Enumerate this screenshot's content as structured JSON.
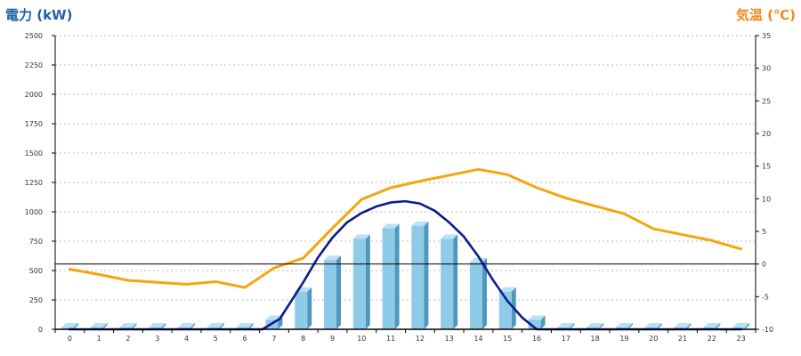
{
  "chart_data": {
    "type": "bar",
    "title": "",
    "xlabel": "",
    "ylabel": "電力 (kW)",
    "y2label": "気温 (℃)",
    "categories": [
      "0",
      "1",
      "2",
      "3",
      "4",
      "5",
      "6",
      "7",
      "8",
      "9",
      "10",
      "11",
      "12",
      "13",
      "14",
      "15",
      "16",
      "17",
      "18",
      "19",
      "20",
      "21",
      "22",
      "23"
    ],
    "ylim": [
      0,
      2500
    ],
    "y2lim": [
      -10,
      35
    ],
    "yticks": [
      0,
      250,
      500,
      750,
      1000,
      1250,
      1500,
      1750,
      2000,
      2250,
      2500
    ],
    "y2ticks": [
      -10,
      -5,
      0,
      5,
      10,
      15,
      20,
      25,
      30,
      35
    ],
    "grid": true,
    "series": [
      {
        "type": "bar",
        "axis": "left",
        "values": [
          0,
          0,
          0,
          0,
          0,
          0,
          0,
          80,
          320,
          590,
          770,
          860,
          880,
          770,
          570,
          320,
          80,
          0,
          0,
          0,
          0,
          0,
          0,
          0
        ]
      },
      {
        "type": "line",
        "axis": "left",
        "x": [
          0,
          1,
          2,
          3,
          4,
          5,
          6,
          6.6,
          7.2,
          8,
          8.5,
          9,
          9.5,
          10,
          10.5,
          11,
          11.5,
          12,
          12.5,
          13,
          13.5,
          14,
          14.5,
          15,
          15.5,
          15.8,
          16,
          17,
          18,
          19,
          20,
          21,
          22,
          23
        ],
        "values": [
          0,
          0,
          0,
          0,
          0,
          0,
          0,
          0,
          90,
          400,
          610,
          780,
          910,
          990,
          1045,
          1080,
          1090,
          1070,
          1010,
          910,
          790,
          620,
          420,
          240,
          100,
          40,
          0,
          0,
          0,
          0,
          0,
          0,
          0,
          0
        ]
      },
      {
        "type": "line",
        "axis": "right",
        "values": [
          -0.8,
          -1.6,
          -2.5,
          -2.8,
          -3.1,
          -2.7,
          -3.6,
          -0.6,
          0.9,
          5.5,
          9.9,
          11.7,
          12.7,
          13.6,
          14.5,
          13.7,
          11.7,
          10.1,
          8.9,
          7.7,
          5.4,
          4.5,
          3.6,
          2.3
        ]
      }
    ]
  },
  "colors": {
    "bar_front": "#8ecbe8",
    "bar_side": "#4f97bd",
    "bar_top": "#b9e1f4",
    "power_line": "#0d1b8c",
    "temp_line": "#f5a50d",
    "grid": "#bbbbbb",
    "zero_line": "#000000"
  }
}
